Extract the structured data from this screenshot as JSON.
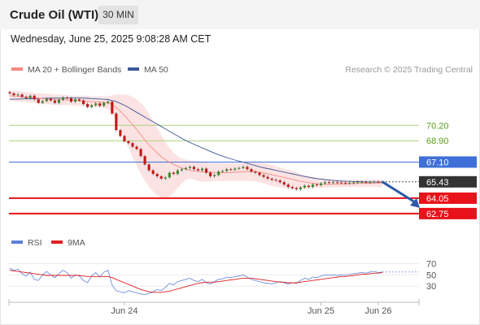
{
  "header": {
    "instrument": "Crude Oil (WTI)",
    "timeframe": "30 MIN",
    "timestamp": "Wednesday, June 25, 2025 9:08:28 AM CET"
  },
  "legend": {
    "items": [
      {
        "label": "MA 20 + Bollinger Bands",
        "color": "#f28b82"
      },
      {
        "label": "MA 50",
        "color": "#3d5a99"
      }
    ],
    "credit": "Research © 2025 Trading Central"
  },
  "rsi_legend": {
    "items": [
      {
        "label": "RSI",
        "color": "#5b7fd6"
      },
      {
        "label": "9MA",
        "color": "#e02020"
      }
    ]
  },
  "chart_data": [
    {
      "type": "line",
      "panel": "price",
      "ylim": [
        61.3,
        73.1
      ],
      "levels": [
        {
          "value": 70.2,
          "label": "70.20",
          "kind": "target",
          "color": "#5a9e1a"
        },
        {
          "value": 68.9,
          "label": "68.90",
          "kind": "target",
          "color": "#5a9e1a"
        },
        {
          "value": 67.1,
          "label": "67.10",
          "kind": "pivot",
          "color": "#3f6fd8"
        },
        {
          "value": 65.43,
          "label": "65.43",
          "kind": "last",
          "color": "#333333"
        },
        {
          "value": 64.05,
          "label": "64.05",
          "kind": "support",
          "color": "#e8121a"
        },
        {
          "value": 62.75,
          "label": "62.75",
          "kind": "support",
          "color": "#e8121a"
        }
      ],
      "x_ticks": [
        {
          "label": "Jun 24",
          "index": 28
        },
        {
          "label": "Jun 25",
          "index": 76
        },
        {
          "label": "Jun 26",
          "index": 90
        }
      ],
      "bar_count": 92,
      "close": [
        72.9,
        72.75,
        72.8,
        72.6,
        72.5,
        72.7,
        72.4,
        72.1,
        72.25,
        72.45,
        72.3,
        72.1,
        72.35,
        72.55,
        72.5,
        72.2,
        72.4,
        72.3,
        72.0,
        71.75,
        71.9,
        72.05,
        71.85,
        72.1,
        72.2,
        71.2,
        69.8,
        69.3,
        68.85,
        68.7,
        68.4,
        68.2,
        67.6,
        66.9,
        66.4,
        66.1,
        65.9,
        65.7,
        65.8,
        66.2,
        66.1,
        66.4,
        66.5,
        66.6,
        66.7,
        66.5,
        66.4,
        66.55,
        66.2,
        65.9,
        66.0,
        66.3,
        66.35,
        66.5,
        66.45,
        66.55,
        66.6,
        66.7,
        66.5,
        66.3,
        66.2,
        66.0,
        65.85,
        65.7,
        65.6,
        65.55,
        65.4,
        65.2,
        65.0,
        64.9,
        64.8,
        64.95,
        65.1,
        65.0,
        65.2,
        65.15,
        65.3,
        65.4,
        65.35,
        65.4,
        65.38,
        65.36,
        65.3,
        65.35,
        65.38,
        65.4,
        65.42,
        65.38,
        65.4,
        65.44,
        65.41,
        65.43
      ],
      "ma20": [
        72.7,
        72.68,
        72.66,
        72.62,
        72.58,
        72.56,
        72.54,
        72.5,
        72.46,
        72.44,
        72.42,
        72.4,
        72.38,
        72.36,
        72.34,
        72.32,
        72.3,
        72.28,
        72.26,
        72.22,
        72.2,
        72.18,
        72.16,
        72.12,
        72.1,
        71.95,
        71.7,
        71.4,
        71.05,
        70.65,
        70.25,
        69.85,
        69.4,
        68.95,
        68.55,
        68.2,
        67.85,
        67.55,
        67.3,
        67.1,
        66.9,
        66.75,
        66.6,
        66.5,
        66.42,
        66.35,
        66.3,
        66.28,
        66.26,
        66.24,
        66.22,
        66.22,
        66.22,
        66.22,
        66.22,
        66.24,
        66.26,
        66.28,
        66.3,
        66.3,
        66.28,
        66.24,
        66.18,
        66.1,
        66.02,
        65.95,
        65.88,
        65.8,
        65.72,
        65.64,
        65.56,
        65.48,
        65.42,
        65.36,
        65.31,
        65.27,
        65.24,
        65.22,
        65.22,
        65.23,
        65.24,
        65.25,
        65.26,
        65.27,
        65.28,
        65.29,
        65.3,
        65.31,
        65.32,
        65.33,
        65.34,
        65.35
      ],
      "bb_upper": [
        73.1,
        73.1,
        73.1,
        73.05,
        73.0,
        73.0,
        72.95,
        72.9,
        72.9,
        72.85,
        72.85,
        72.8,
        72.8,
        72.75,
        72.75,
        72.7,
        72.7,
        72.7,
        72.7,
        72.7,
        72.65,
        72.65,
        72.65,
        72.65,
        72.65,
        72.75,
        72.8,
        72.8,
        72.8,
        72.75,
        72.6,
        72.4,
        72.1,
        71.7,
        71.2,
        70.6,
        70.0,
        69.4,
        68.8,
        68.3,
        67.9,
        67.6,
        67.4,
        67.3,
        67.25,
        67.2,
        67.15,
        67.1,
        67.05,
        67.0,
        67.0,
        67.0,
        67.0,
        67.0,
        67.0,
        67.0,
        67.0,
        67.05,
        67.05,
        67.05,
        67.05,
        67.05,
        67.0,
        66.95,
        66.85,
        66.75,
        66.65,
        66.55,
        66.45,
        66.35,
        66.25,
        66.1,
        66.0,
        65.9,
        65.85,
        65.8,
        65.75,
        65.7,
        65.65,
        65.6,
        65.6,
        65.6,
        65.6,
        65.6,
        65.6,
        65.6,
        65.6,
        65.6,
        65.6,
        65.6,
        65.6,
        65.6
      ],
      "bb_lower": [
        72.3,
        72.25,
        72.2,
        72.2,
        72.15,
        72.1,
        72.1,
        72.05,
        72.0,
        72.0,
        71.95,
        71.95,
        71.9,
        71.9,
        71.9,
        71.9,
        71.85,
        71.85,
        71.8,
        71.75,
        71.75,
        71.7,
        71.7,
        71.65,
        71.6,
        71.2,
        70.6,
        69.9,
        69.1,
        68.3,
        67.5,
        66.8,
        66.1,
        65.5,
        65.0,
        64.6,
        64.3,
        64.15,
        64.1,
        64.2,
        64.5,
        64.9,
        65.3,
        65.6,
        65.7,
        65.6,
        65.5,
        65.45,
        65.45,
        65.45,
        65.5,
        65.5,
        65.5,
        65.5,
        65.5,
        65.5,
        65.5,
        65.5,
        65.5,
        65.5,
        65.45,
        65.4,
        65.3,
        65.2,
        65.1,
        65.0,
        64.95,
        64.9,
        64.85,
        64.8,
        64.8,
        64.85,
        64.85,
        64.85,
        64.9,
        64.9,
        64.9,
        64.95,
        64.95,
        64.95,
        64.95,
        65.0,
        65.0,
        65.0,
        65.0,
        65.0,
        65.0,
        65.0,
        65.0,
        65.0,
        65.0,
        65.0
      ],
      "ma50": [
        72.4,
        72.41,
        72.42,
        72.43,
        72.44,
        72.45,
        72.46,
        72.47,
        72.48,
        72.48,
        72.49,
        72.5,
        72.5,
        72.5,
        72.5,
        72.5,
        72.5,
        72.5,
        72.5,
        72.48,
        72.46,
        72.44,
        72.42,
        72.4,
        72.38,
        72.3,
        72.2,
        72.05,
        71.9,
        71.7,
        71.5,
        71.3,
        71.1,
        70.9,
        70.7,
        70.5,
        70.3,
        70.1,
        69.9,
        69.7,
        69.5,
        69.3,
        69.1,
        68.92,
        68.76,
        68.6,
        68.45,
        68.3,
        68.15,
        68.0,
        67.86,
        67.72,
        67.6,
        67.48,
        67.37,
        67.27,
        67.18,
        67.1,
        67.0,
        66.9,
        66.8,
        66.7,
        66.62,
        66.55,
        66.48,
        66.4,
        66.32,
        66.25,
        66.18,
        66.1,
        66.03,
        65.95,
        65.88,
        65.82,
        65.76,
        65.7,
        65.66,
        65.62,
        65.58,
        65.55,
        65.52,
        65.5,
        65.48,
        65.47,
        65.46,
        65.45,
        65.44,
        65.43,
        65.42,
        65.42,
        65.41,
        65.41
      ],
      "forecast_arrow": {
        "from": 65.43,
        "to": 64.05
      }
    },
    {
      "type": "line",
      "panel": "rsi",
      "ylim": [
        10,
        85
      ],
      "ticks": [
        70,
        50,
        30
      ],
      "series": [
        {
          "name": "RSI",
          "color": "#5b7fd6",
          "values": [
            62,
            58,
            60,
            52,
            48,
            55,
            42,
            40,
            50,
            56,
            50,
            45,
            52,
            58,
            54,
            44,
            50,
            48,
            40,
            36,
            48,
            54,
            46,
            55,
            58,
            32,
            22,
            20,
            18,
            22,
            20,
            18,
            16,
            15,
            17,
            20,
            24,
            22,
            28,
            35,
            32,
            38,
            40,
            42,
            44,
            40,
            38,
            42,
            36,
            34,
            38,
            42,
            43,
            46,
            45,
            47,
            48,
            50,
            46,
            42,
            40,
            38,
            36,
            35,
            34,
            36,
            38,
            36,
            34,
            36,
            35,
            40,
            44,
            42,
            46,
            45,
            48,
            50,
            49,
            50,
            49,
            50,
            49,
            51,
            52,
            53,
            54,
            53,
            55,
            56,
            54,
            55
          ]
        },
        {
          "name": "9MA",
          "color": "#e02020",
          "values": [
            58,
            57,
            56,
            55,
            54,
            53,
            52,
            51,
            50,
            49,
            49,
            49,
            49,
            49,
            49,
            49,
            49,
            49,
            48,
            47,
            47,
            47,
            47,
            47,
            47,
            45,
            42,
            39,
            36,
            33,
            30,
            27,
            24,
            22,
            20,
            19,
            19,
            19,
            20,
            21,
            23,
            25,
            27,
            29,
            31,
            33,
            35,
            36,
            37,
            37,
            37,
            38,
            39,
            40,
            41,
            42,
            43,
            44,
            44,
            44,
            43,
            42,
            41,
            40,
            39,
            38,
            37,
            37,
            36,
            36,
            36,
            37,
            38,
            39,
            40,
            41,
            42,
            43,
            44,
            45,
            46,
            47,
            47,
            48,
            49,
            50,
            51,
            51,
            52,
            53,
            53,
            54
          ]
        }
      ]
    }
  ]
}
